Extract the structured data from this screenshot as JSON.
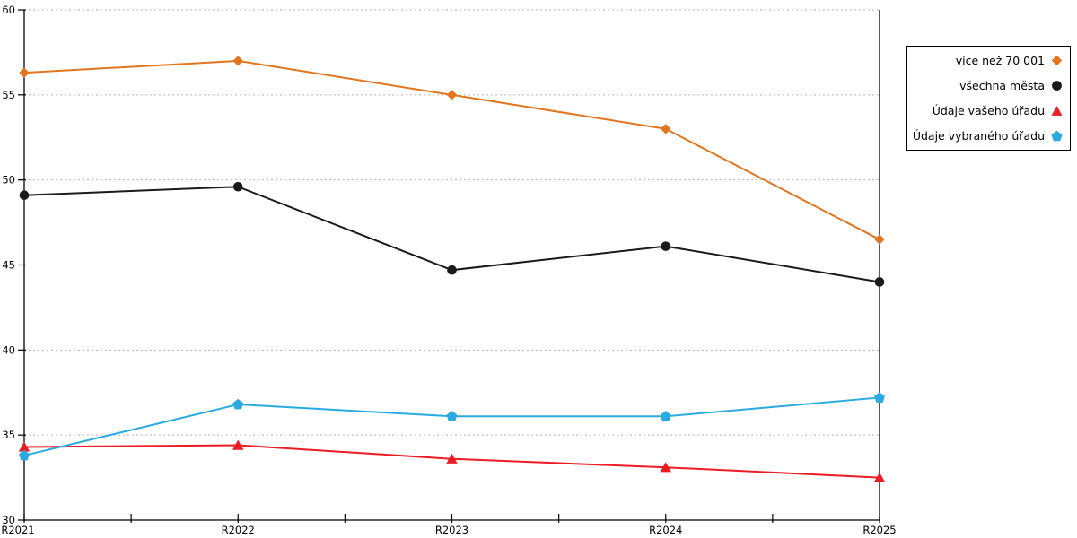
{
  "chart_data": {
    "type": "line",
    "title": "",
    "xlabel": "",
    "ylabel": "",
    "x": [
      "R2021",
      "R2022",
      "R2023",
      "R2024",
      "R2025"
    ],
    "ylim": [
      30,
      60
    ],
    "y_ticks": [
      30,
      35,
      40,
      45,
      50,
      55,
      60
    ],
    "grid": "horizontal-dashed",
    "grid_color": "#b3b3b3",
    "axis_color": "#000000",
    "legend_position": "right-outside",
    "series": [
      {
        "name": "více než 70 001",
        "marker": "diamond",
        "color": "#E2751D",
        "values": [
          56.3,
          57.0,
          55.0,
          53.0,
          46.5
        ]
      },
      {
        "name": "všechna města",
        "marker": "circle",
        "color": "#1A1A1A",
        "values": [
          49.1,
          49.6,
          44.7,
          46.1,
          44.0
        ]
      },
      {
        "name": "Údaje vašeho úřadu",
        "marker": "triangle",
        "color": "#ED1C24",
        "values": [
          34.3,
          34.4,
          33.6,
          33.1,
          32.5
        ]
      },
      {
        "name": "Údaje vybraného úřadu",
        "marker": "pentagon",
        "color": "#29ABE2",
        "values": [
          33.8,
          36.8,
          36.1,
          36.1,
          37.2
        ]
      }
    ]
  }
}
